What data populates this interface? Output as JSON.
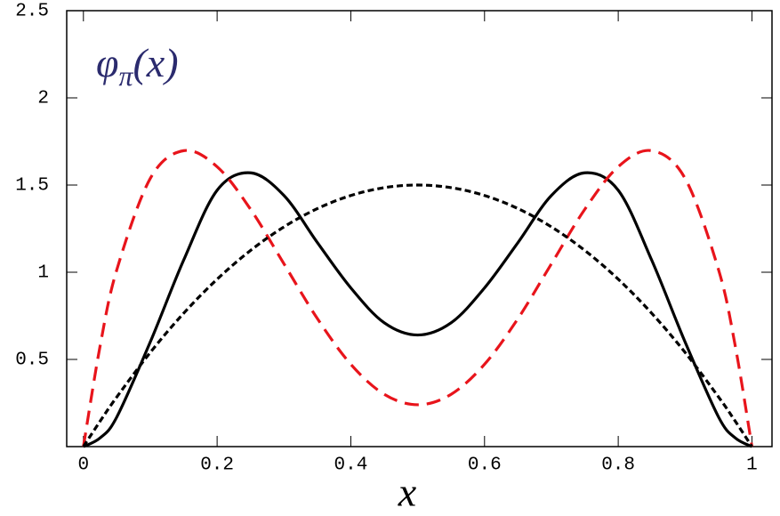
{
  "chart_data": {
    "type": "line",
    "annotation": {
      "base": "φ",
      "sub": "π",
      "arg": "(x)"
    },
    "x_label": "x",
    "x": [
      0,
      0.025,
      0.05,
      0.1,
      0.15,
      0.2,
      0.25,
      0.3,
      0.35,
      0.4,
      0.45,
      0.5,
      0.55,
      0.6,
      0.65,
      0.7,
      0.75,
      0.8,
      0.85,
      0.9,
      0.95,
      0.975,
      1
    ],
    "series": [
      {
        "color": "#000000",
        "dash": "solid",
        "values": [
          0,
          0.05,
          0.17,
          0.6,
          1.07,
          1.47,
          1.57,
          1.44,
          1.17,
          0.91,
          0.71,
          0.64,
          0.71,
          0.91,
          1.17,
          1.44,
          1.57,
          1.47,
          1.07,
          0.6,
          0.17,
          0.05,
          0
        ]
      },
      {
        "color": "#e8141b",
        "dash": "long",
        "values": [
          0,
          0.578,
          1.015,
          1.538,
          1.697,
          1.605,
          1.361,
          1.048,
          0.734,
          0.472,
          0.3,
          0.24,
          0.3,
          0.472,
          0.734,
          1.048,
          1.361,
          1.605,
          1.697,
          1.538,
          1.015,
          0.578,
          0
        ]
      },
      {
        "color": "#000000",
        "dash": "short",
        "values": [
          0,
          0.146,
          0.285,
          0.54,
          0.765,
          0.96,
          1.125,
          1.26,
          1.365,
          1.44,
          1.485,
          1.5,
          1.485,
          1.44,
          1.365,
          1.26,
          1.125,
          0.96,
          0.765,
          0.54,
          0.285,
          0.146,
          0
        ]
      }
    ],
    "xlim": [
      -0.025,
      1.03
    ],
    "ylim": [
      0,
      2.5
    ],
    "xticks": [
      0,
      0.2,
      0.4,
      0.6,
      0.8,
      1
    ],
    "yticks": [
      0.5,
      1,
      1.5,
      2,
      2.5
    ],
    "annotation_color": "#2b2b6e"
  }
}
